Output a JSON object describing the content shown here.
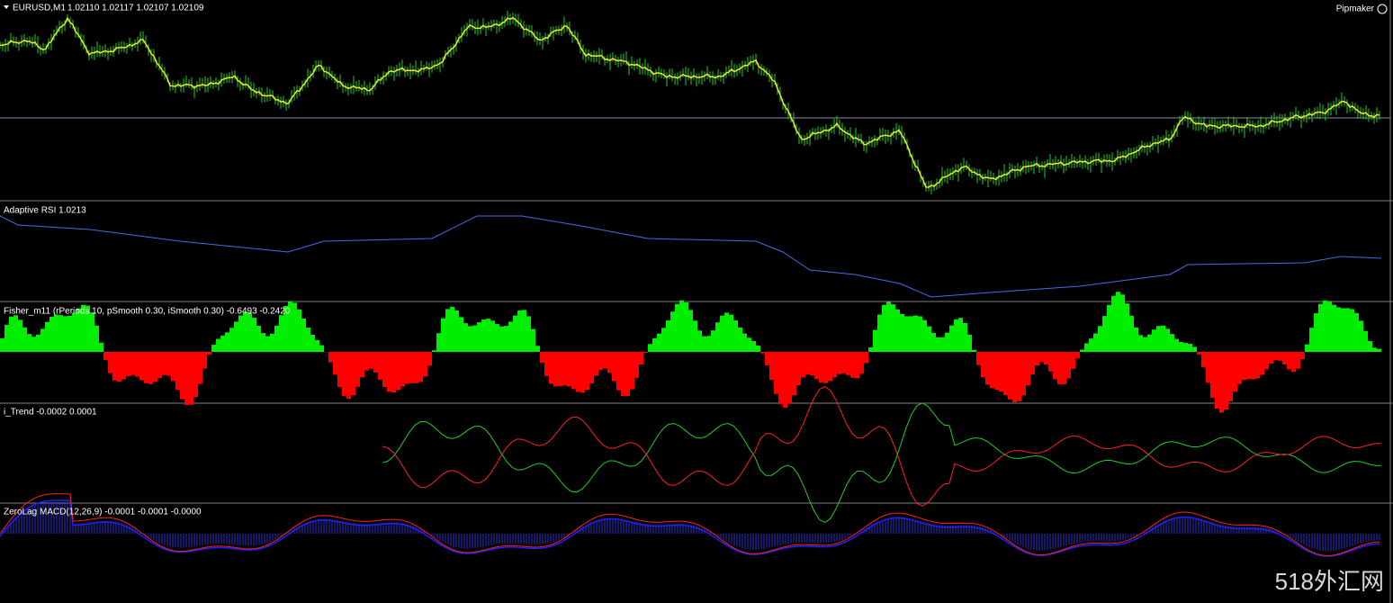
{
  "main_pane": {
    "symbol": "EURUSD,M1",
    "quotes": "1.02110 1.02117 1.02107 1.02109",
    "brand": "Pipmaker"
  },
  "indicator_panes": [
    {
      "label": "Adaptive RSI 1.0213"
    },
    {
      "label": "Fisher_m11  (rPeriods 10, pSmooth 0.30, iSmooth 0.30)   -0.6493 -0.2420"
    },
    {
      "label": "i_Trend -0.0002 0.0001"
    },
    {
      "label": "ZeroLag MACD(12,26,9) -0.0001 -0.0001 -0.0000"
    }
  ],
  "watermark": "518外汇网"
}
